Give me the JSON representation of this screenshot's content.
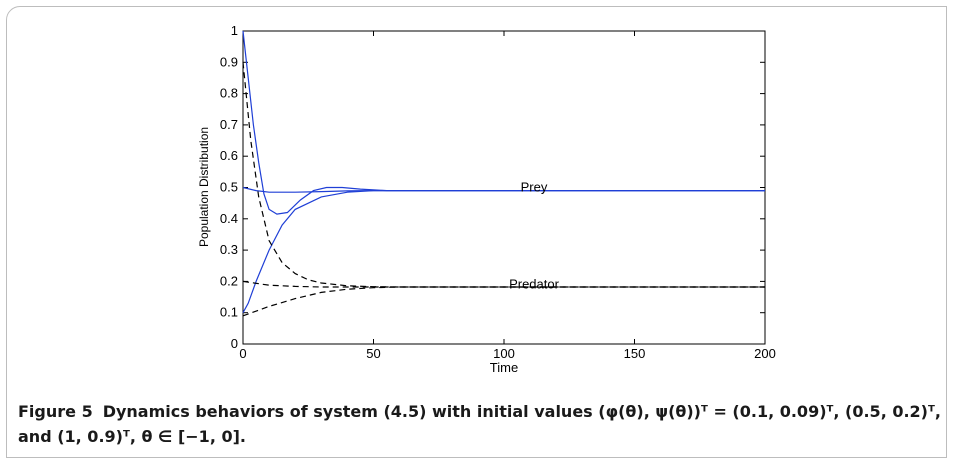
{
  "figure": {
    "label": "Figure 5",
    "caption": "Dynamics behaviors of system (4.5) with initial values (φ(θ), ψ(θ))ᵀ = (0.1, 0.09)ᵀ, (0.5, 0.2)ᵀ, and (1, 0.9)ᵀ, θ ∈ [−1, 0]."
  },
  "chart_data": {
    "type": "line",
    "xlabel": "Time",
    "ylabel": "Population Distribution",
    "xlim": [
      0,
      200
    ],
    "ylim": [
      0,
      1
    ],
    "xticks": [
      "0",
      "50",
      "100",
      "150",
      "200"
    ],
    "yticks": [
      "0",
      "0.1",
      "0.2",
      "0.3",
      "0.4",
      "0.5",
      "0.6",
      "0.7",
      "0.8",
      "0.9",
      "1"
    ],
    "annotations": [
      {
        "text": "Prey",
        "x": 100,
        "y": 0.5
      },
      {
        "text": "Predator",
        "x": 100,
        "y": 0.19
      }
    ],
    "series": [
      {
        "color": "#1f3fd6",
        "style": "solid",
        "x": [
          0,
          2,
          5,
          10,
          15,
          20,
          30,
          40,
          50,
          60,
          80,
          200
        ],
        "y": [
          0.1,
          0.13,
          0.2,
          0.3,
          0.38,
          0.43,
          0.47,
          0.485,
          0.49,
          0.49,
          0.49,
          0.49
        ]
      },
      {
        "color": "#1f3fd6",
        "style": "solid",
        "x": [
          0,
          5,
          10,
          20,
          30,
          40,
          50,
          60,
          200
        ],
        "y": [
          0.5,
          0.49,
          0.485,
          0.485,
          0.487,
          0.489,
          0.49,
          0.49,
          0.49
        ]
      },
      {
        "color": "#1f3fd6",
        "style": "solid",
        "x": [
          0,
          2,
          4,
          6,
          8,
          10,
          13,
          17,
          22,
          27,
          32,
          38,
          45,
          55,
          70,
          200
        ],
        "y": [
          1.0,
          0.85,
          0.7,
          0.58,
          0.48,
          0.43,
          0.415,
          0.42,
          0.46,
          0.49,
          0.5,
          0.5,
          0.495,
          0.49,
          0.49,
          0.49
        ]
      },
      {
        "color": "#000000",
        "style": "dashed",
        "x": [
          0,
          10,
          20,
          30,
          40,
          50,
          60,
          80,
          200
        ],
        "y": [
          0.09,
          0.12,
          0.145,
          0.165,
          0.175,
          0.18,
          0.182,
          0.182,
          0.182
        ]
      },
      {
        "color": "#000000",
        "style": "dashed",
        "x": [
          0,
          10,
          20,
          30,
          40,
          50,
          200
        ],
        "y": [
          0.2,
          0.188,
          0.184,
          0.182,
          0.182,
          0.182,
          0.182
        ]
      },
      {
        "color": "#000000",
        "style": "dashed",
        "x": [
          0,
          3,
          6,
          10,
          15,
          20,
          25,
          30,
          40,
          50,
          60,
          200
        ],
        "y": [
          0.9,
          0.65,
          0.47,
          0.33,
          0.26,
          0.225,
          0.205,
          0.195,
          0.186,
          0.183,
          0.182,
          0.182
        ]
      }
    ]
  }
}
